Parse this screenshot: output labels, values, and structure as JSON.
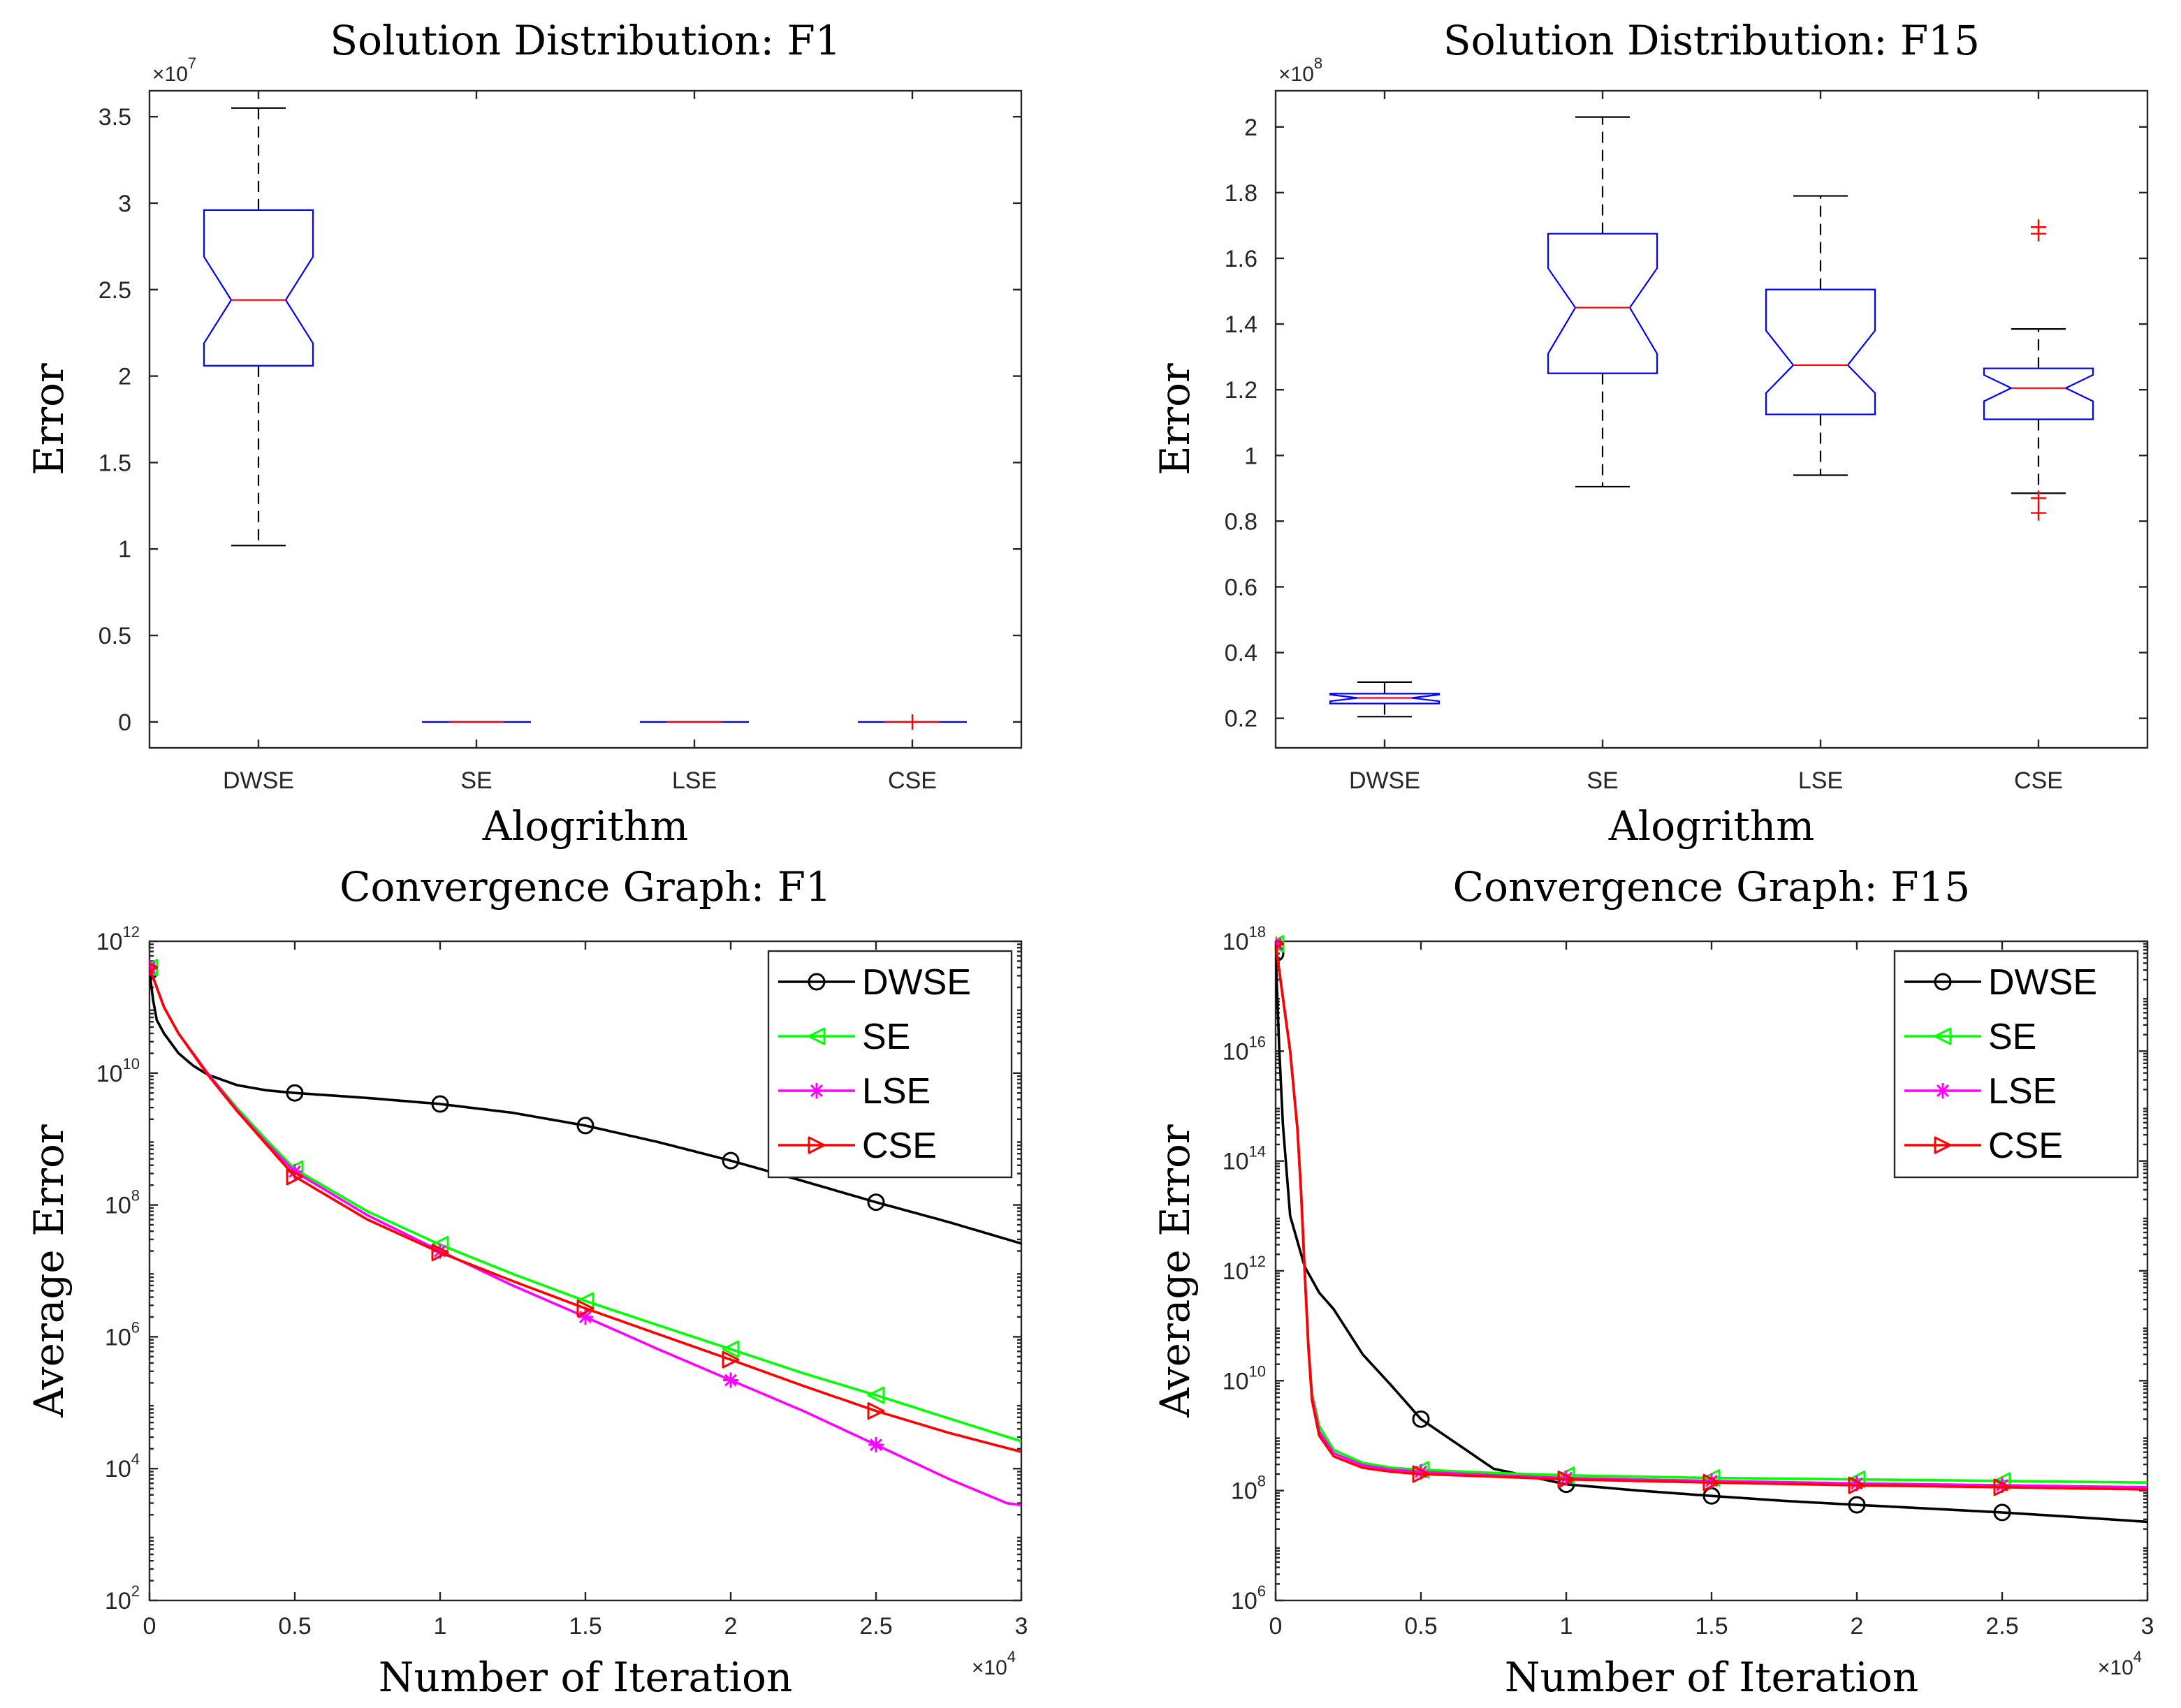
{
  "chart_data": [
    {
      "type": "box",
      "title": "Solution Distribution: F1",
      "xlabel": "Alogrithm",
      "ylabel": "Error",
      "y_exponent_label": "×10",
      "y_exponent": "7",
      "ylim": [
        -0.15,
        3.65
      ],
      "yticks": [
        0,
        0.5,
        1,
        1.5,
        2,
        2.5,
        3,
        3.5
      ],
      "ytick_labels": [
        "0",
        "0.5",
        "1",
        "1.5",
        "2",
        "2.5",
        "3",
        "3.5"
      ],
      "categories": [
        "DWSE",
        "SE",
        "LSE",
        "CSE"
      ],
      "boxes": [
        {
          "name": "DWSE",
          "whisker_low": 1.02,
          "q1": 2.06,
          "median": 2.44,
          "q3": 2.96,
          "whisker_high": 3.55,
          "notch_low": 2.19,
          "notch_high": 2.69,
          "outliers": []
        },
        {
          "name": "SE",
          "whisker_low": 0.0,
          "q1": 0.0,
          "median": 0.0,
          "q3": 0.0,
          "whisker_high": 0.0,
          "notch_low": 0.0,
          "notch_high": 0.0,
          "outliers": []
        },
        {
          "name": "LSE",
          "whisker_low": 0.0,
          "q1": 0.0,
          "median": 0.0,
          "q3": 0.0,
          "whisker_high": 0.0,
          "notch_low": 0.0,
          "notch_high": 0.0,
          "outliers": []
        },
        {
          "name": "CSE",
          "whisker_low": 0.0,
          "q1": 0.0,
          "median": 0.0,
          "q3": 0.0,
          "whisker_high": 0.0,
          "notch_low": 0.0,
          "notch_high": 0.0,
          "outliers": [
            0.0
          ]
        }
      ]
    },
    {
      "type": "box",
      "title": "Solution Distribution: F15",
      "xlabel": "Alogrithm",
      "ylabel": "Error",
      "y_exponent_label": "×10",
      "y_exponent": "8",
      "ylim": [
        0.11,
        2.11
      ],
      "yticks": [
        0.2,
        0.4,
        0.6,
        0.8,
        1,
        1.2,
        1.4,
        1.6,
        1.8,
        2
      ],
      "ytick_labels": [
        "0.2",
        "0.4",
        "0.6",
        "0.8",
        "1",
        "1.2",
        "1.4",
        "1.6",
        "1.8",
        "2"
      ],
      "categories": [
        "DWSE",
        "SE",
        "LSE",
        "CSE"
      ],
      "boxes": [
        {
          "name": "DWSE",
          "whisker_low": 0.205,
          "q1": 0.245,
          "median": 0.262,
          "q3": 0.275,
          "whisker_high": 0.31,
          "notch_low": 0.252,
          "notch_high": 0.272,
          "outliers": []
        },
        {
          "name": "SE",
          "whisker_low": 0.905,
          "q1": 1.25,
          "median": 1.45,
          "q3": 1.675,
          "whisker_high": 2.03,
          "notch_low": 1.31,
          "notch_high": 1.57,
          "outliers": []
        },
        {
          "name": "LSE",
          "whisker_low": 0.94,
          "q1": 1.125,
          "median": 1.275,
          "q3": 1.505,
          "whisker_high": 1.79,
          "notch_low": 1.19,
          "notch_high": 1.38,
          "outliers": []
        },
        {
          "name": "CSE",
          "whisker_low": 0.885,
          "q1": 1.11,
          "median": 1.205,
          "q3": 1.265,
          "whisker_high": 1.385,
          "notch_low": 1.165,
          "notch_high": 1.245,
          "outliers": [
            1.695,
            1.675,
            0.87,
            0.825
          ]
        }
      ]
    },
    {
      "type": "line",
      "yscale": "log",
      "title": "Convergence Graph: F1",
      "xlabel": "Number of Iteration",
      "ylabel": "Average Error",
      "x_exponent_label": "×10",
      "x_exponent": "4",
      "xlim": [
        0,
        3
      ],
      "xticks": [
        0,
        0.5,
        1,
        1.5,
        2,
        2.5,
        3
      ],
      "xtick_labels": [
        "0",
        "0.5",
        "1",
        "1.5",
        "2",
        "2.5",
        "3"
      ],
      "ylim_log10": [
        2,
        12
      ],
      "yticks_log10": [
        2,
        4,
        6,
        8,
        10,
        12
      ],
      "ytick_base": "10",
      "ytick_exponents": [
        "2",
        "4",
        "6",
        "8",
        "10",
        "12"
      ],
      "legend": "top-right",
      "series": [
        {
          "name": "DWSE",
          "color": "#000000",
          "marker": "circle",
          "x": [
            0,
            0.02,
            0.05,
            0.1,
            0.15,
            0.2,
            0.3,
            0.4,
            0.5,
            0.75,
            1.0,
            1.25,
            1.5,
            1.75,
            2.0,
            2.25,
            2.5,
            2.75,
            3.0
          ],
          "y": [
            350000000000.0,
            70000000000.0,
            40000000000.0,
            20000000000.0,
            13000000000.0,
            9500000000.0,
            6600000000.0,
            5500000000.0,
            5000000000.0,
            4200000000.0,
            3400000000.0,
            2500000000.0,
            1600000000.0,
            900000000.0,
            470000000.0,
            230000000.0,
            110000000.0,
            55000000.0,
            26000000.0
          ],
          "marker_x": [
            0,
            0.5,
            1.0,
            1.5,
            2.0,
            2.5
          ]
        },
        {
          "name": "SE",
          "color": "#00ff00",
          "marker": "triangle-left",
          "x": [
            0,
            0.05,
            0.1,
            0.2,
            0.3,
            0.4,
            0.5,
            0.75,
            1.0,
            1.25,
            1.5,
            1.75,
            2.0,
            2.25,
            2.5,
            2.75,
            3.0
          ],
          "y": [
            400000000000.0,
            100000000000.0,
            40000000000.0,
            10000000000.0,
            3000000000.0,
            1000000000.0,
            350000000.0,
            80000000.0,
            25000000.0,
            9000000.0,
            3500000.0,
            1500000.0,
            650000.0,
            280000.0,
            130000.0,
            58000.0,
            26000.0
          ],
          "marker_x": [
            0,
            0.5,
            1.0,
            1.5,
            2.0,
            2.5
          ]
        },
        {
          "name": "LSE",
          "color": "#ff00ff",
          "marker": "asterisk",
          "x": [
            0,
            0.05,
            0.1,
            0.2,
            0.3,
            0.4,
            0.5,
            0.75,
            1.0,
            1.25,
            1.5,
            1.75,
            2.0,
            2.25,
            2.5,
            2.75,
            2.95,
            3.0
          ],
          "y": [
            400000000000.0,
            100000000000.0,
            40000000000.0,
            10000000000.0,
            2800000000.0,
            900000000.0,
            320000000.0,
            70000000.0,
            20000000.0,
            6000000.0,
            2000000.0,
            650000.0,
            220000.0,
            75000.0,
            23000.0,
            7000.0,
            3000.0,
            2800.0
          ],
          "marker_x": [
            0,
            0.5,
            1.0,
            1.5,
            2.0,
            2.5
          ]
        },
        {
          "name": "CSE",
          "color": "#ff0000",
          "marker": "triangle-right",
          "x": [
            0,
            0.05,
            0.1,
            0.2,
            0.3,
            0.4,
            0.5,
            0.75,
            1.0,
            1.25,
            1.5,
            1.75,
            2.0,
            2.25,
            2.5,
            2.75,
            3.0
          ],
          "y": [
            400000000000.0,
            100000000000.0,
            40000000000.0,
            9500000000.0,
            2700000000.0,
            850000000.0,
            270000000.0,
            60000000.0,
            19000000.0,
            7000000.0,
            2700000.0,
            1100000.0,
            450000.0,
            180000.0,
            75000.0,
            35000.0,
            18000.0
          ],
          "marker_x": [
            0,
            0.5,
            1.0,
            1.5,
            2.0,
            2.5
          ]
        }
      ]
    },
    {
      "type": "line",
      "yscale": "log",
      "title": "Convergence Graph: F15",
      "xlabel": "Number of Iteration",
      "ylabel": "Average Error",
      "x_exponent_label": "×10",
      "x_exponent": "4",
      "xlim": [
        0,
        3
      ],
      "xticks": [
        0,
        0.5,
        1,
        1.5,
        2,
        2.5,
        3
      ],
      "xtick_labels": [
        "0",
        "0.5",
        "1",
        "1.5",
        "2",
        "2.5",
        "3"
      ],
      "ylim_log10": [
        6,
        18
      ],
      "yticks_log10": [
        6,
        8,
        10,
        12,
        14,
        16,
        18
      ],
      "ytick_base": "10",
      "ytick_exponents": [
        "6",
        "8",
        "10",
        "12",
        "14",
        "16",
        "18"
      ],
      "legend": "top-right",
      "series": [
        {
          "name": "DWSE",
          "color": "#000000",
          "marker": "circle",
          "x": [
            0,
            0.02,
            0.05,
            0.1,
            0.15,
            0.2,
            0.3,
            0.4,
            0.5,
            0.75,
            1.0,
            1.25,
            1.5,
            1.75,
            2.0,
            2.25,
            2.5,
            2.75,
            3.0
          ],
          "y": [
            6e+17,
            1000000000000000.0,
            10000000000000.0,
            1200000000000.0,
            400000000000.0,
            200000000000.0,
            30000000000.0,
            8000000000.0,
            2000000000.0,
            250000000.0,
            130000000.0,
            100000000.0,
            80000000.0,
            65000000.0,
            55000000.0,
            47000000.0,
            40000000.0,
            33000000.0,
            27000000.0
          ],
          "marker_x": [
            0,
            0.5,
            1.0,
            1.5,
            2.0,
            2.5
          ]
        },
        {
          "name": "SE",
          "color": "#00ff00",
          "marker": "triangle-left",
          "x": [
            0,
            0.05,
            0.08,
            0.1,
            0.12,
            0.15,
            0.2,
            0.3,
            0.4,
            0.5,
            0.75,
            1.0,
            1.5,
            2.0,
            2.5,
            3.0
          ],
          "y": [
            9e+17,
            1e+16,
            200000000000000.0,
            1000000000000.0,
            8000000000.0,
            1500000000.0,
            550000000.0,
            320000000.0,
            260000000.0,
            240000000.0,
            210000000.0,
            190000000.0,
            170000000.0,
            160000000.0,
            150000000.0,
            140000000.0
          ],
          "marker_x": [
            0,
            0.5,
            1.0,
            1.5,
            2.0,
            2.5
          ]
        },
        {
          "name": "LSE",
          "color": "#ff00ff",
          "marker": "asterisk",
          "x": [
            0,
            0.05,
            0.08,
            0.1,
            0.12,
            0.15,
            0.2,
            0.3,
            0.4,
            0.5,
            0.75,
            1.0,
            1.5,
            2.0,
            2.5,
            3.0
          ],
          "y": [
            9e+17,
            1e+16,
            200000000000000.0,
            1000000000000.0,
            7000000000.0,
            1200000000.0,
            480000000.0,
            290000000.0,
            240000000.0,
            220000000.0,
            190000000.0,
            170000000.0,
            150000000.0,
            135000000.0,
            125000000.0,
            115000000.0
          ],
          "marker_x": [
            0,
            0.5,
            1.0,
            1.5,
            2.0,
            2.5
          ]
        },
        {
          "name": "CSE",
          "color": "#ff0000",
          "marker": "triangle-right",
          "x": [
            0,
            0.05,
            0.08,
            0.1,
            0.12,
            0.15,
            0.2,
            0.3,
            0.4,
            0.5,
            0.75,
            1.0,
            1.5,
            2.0,
            2.5,
            3.0
          ],
          "y": [
            9e+17,
            1e+16,
            200000000000000.0,
            1000000000000.0,
            6000000000.0,
            1000000000.0,
            420000000.0,
            260000000.0,
            220000000.0,
            200000000.0,
            180000000.0,
            160000000.0,
            140000000.0,
            125000000.0,
            115000000.0,
            105000000.0
          ],
          "marker_x": [
            0,
            0.5,
            1.0,
            1.5,
            2.0,
            2.5
          ]
        }
      ]
    }
  ]
}
